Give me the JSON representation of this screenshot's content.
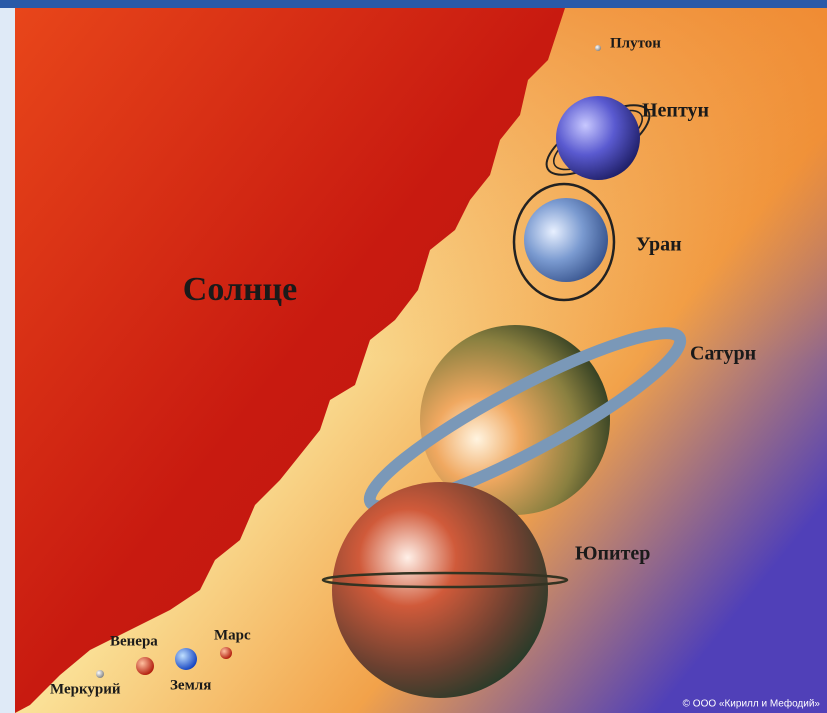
{
  "sun": "Солнце",
  "planets": [
    {
      "label": "Меркурий"
    },
    {
      "label": "Венера"
    },
    {
      "label": "Земля"
    },
    {
      "label": "Марс"
    },
    {
      "label": "Юпитер"
    },
    {
      "label": "Сатурн"
    },
    {
      "label": "Уран"
    },
    {
      "label": "Нептун"
    },
    {
      "label": "Плутон"
    }
  ],
  "credit": "© ООО «Кирилл и Мефодий»"
}
